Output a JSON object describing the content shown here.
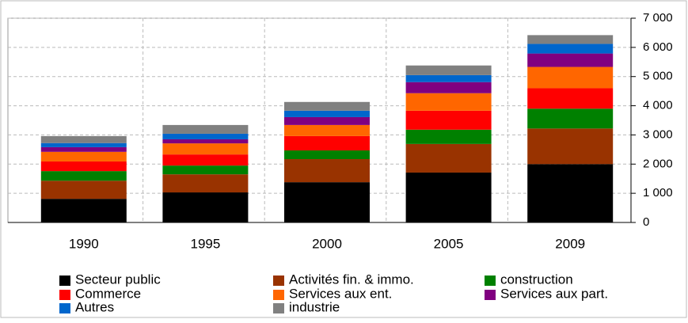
{
  "chart_data": {
    "type": "stacked_bar",
    "categories": [
      "1990",
      "1995",
      "2000",
      "2005",
      "2009"
    ],
    "series": [
      {
        "name": "Secteur public",
        "color": "#000000",
        "values": [
          810,
          1030,
          1380,
          1710,
          2000
        ]
      },
      {
        "name": "Activités fin. & immo.",
        "color": "#993300",
        "values": [
          620,
          620,
          790,
          980,
          1220
        ]
      },
      {
        "name": "construction",
        "color": "#008000",
        "values": [
          330,
          300,
          300,
          490,
          680
        ]
      },
      {
        "name": "Commerce",
        "color": "#ff0000",
        "values": [
          330,
          380,
          490,
          650,
          700
        ]
      },
      {
        "name": "Services aux ent.",
        "color": "#ff6600",
        "values": [
          330,
          380,
          380,
          600,
          730
        ]
      },
      {
        "name": "Services aux part.",
        "color": "#800080",
        "values": [
          160,
          140,
          270,
          380,
          460
        ]
      },
      {
        "name": "Autres",
        "color": "#0066cc",
        "values": [
          140,
          190,
          220,
          240,
          330
        ]
      },
      {
        "name": "industrie",
        "color": "#808080",
        "values": [
          240,
          300,
          300,
          330,
          300
        ]
      }
    ],
    "ylim": [
      0,
      7000
    ],
    "yticks": [
      0,
      {
        "value": 1000,
        "label": "1 000"
      },
      {
        "value": 2000,
        "label": "2 000"
      },
      {
        "value": 3000,
        "label": "3 000"
      },
      {
        "value": 4000,
        "label": "4 000"
      },
      {
        "value": 5000,
        "label": "5 000"
      },
      {
        "value": 6000,
        "label": "6 000"
      },
      {
        "value": 7000,
        "label": "7 000"
      }
    ],
    "grid": true
  }
}
